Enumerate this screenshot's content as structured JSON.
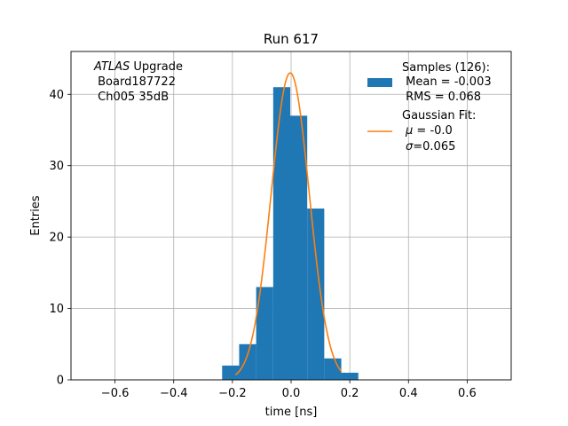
{
  "chart_data": {
    "type": "bar",
    "title": "Run 617",
    "xlabel": "time [ns]",
    "ylabel": "Entries",
    "xlim": [
      -0.75,
      0.75
    ],
    "ylim": [
      0,
      46
    ],
    "grid": true,
    "xticks": [
      -0.6,
      -0.4,
      -0.2,
      0.0,
      0.2,
      0.4,
      0.6
    ],
    "xtick_labels": [
      "−0.6",
      "−0.4",
      "−0.2",
      "0.0",
      "0.2",
      "0.4",
      "0.6"
    ],
    "yticks": [
      0,
      10,
      20,
      30,
      40
    ],
    "ytick_labels": [
      "0",
      "10",
      "20",
      "30",
      "40"
    ],
    "annotation": {
      "line1_italic": "ATLAS",
      "line1_rest": " Upgrade",
      "line2": " Board187722",
      "line3": " Ch005 35dB"
    },
    "legend": {
      "placement": "top-right",
      "hist_lines": [
        "Samples (126):",
        " Mean = -0.003",
        " RMS = 0.068"
      ],
      "fit_line1": "Gaussian Fit:",
      "fit_mu_symbol": "μ",
      "fit_mu_value": " = -0.0",
      "fit_sigma_symbol": "σ",
      "fit_sigma_value": "=0.065"
    },
    "histogram": {
      "color": "#1f77b4",
      "bin_edges": [
        -0.235,
        -0.177,
        -0.119,
        -0.061,
        -0.003,
        0.055,
        0.113,
        0.171,
        0.229
      ],
      "counts": [
        2,
        5,
        13,
        41,
        37,
        24,
        3,
        1
      ]
    },
    "gaussian_fit": {
      "color": "#ff7f0e",
      "amplitude": 43,
      "mu": -0.003,
      "sigma": 0.065,
      "x_range": [
        -0.19,
        0.172
      ]
    }
  }
}
